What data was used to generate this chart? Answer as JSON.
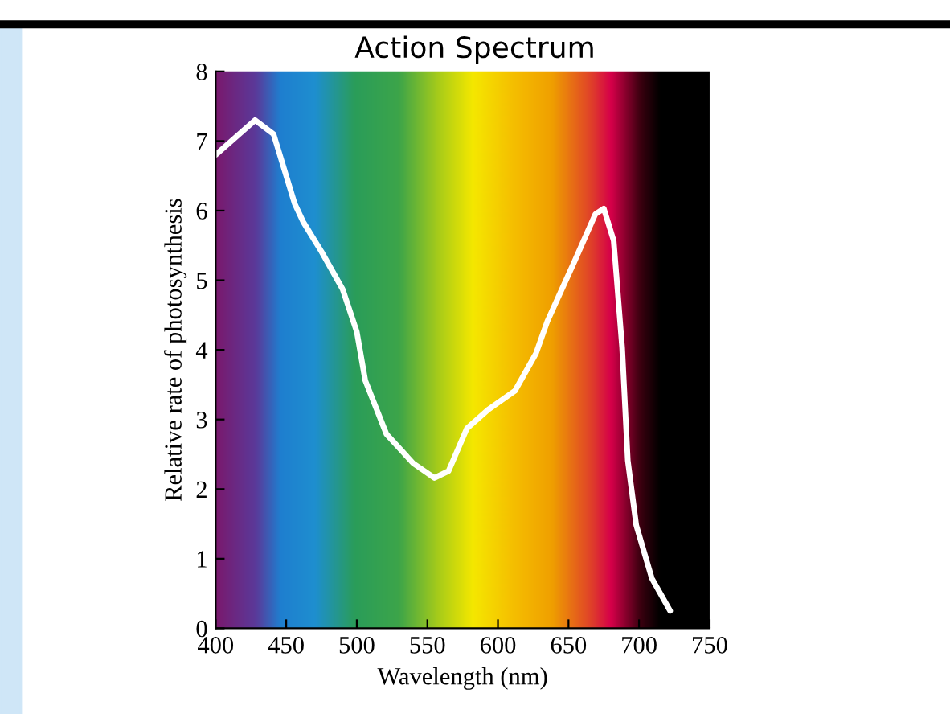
{
  "chart_data": {
    "type": "line",
    "title": "Action Spectrum",
    "xlabel": "Wavelength (nm)",
    "ylabel": "Relative rate of photosynthesis",
    "xlim": [
      400,
      750
    ],
    "ylim": [
      0,
      8
    ],
    "xticks": [
      400,
      450,
      500,
      550,
      600,
      650,
      700,
      750
    ],
    "yticks": [
      0,
      1,
      2,
      3,
      4,
      5,
      6,
      7,
      8
    ],
    "grid": false,
    "legend": false,
    "marker": "none",
    "line_style": "solid",
    "series": [
      {
        "color": "#ffffff",
        "x": [
          400,
          428,
          441,
          456,
          462,
          475,
          490,
          500,
          506,
          521,
          540,
          555,
          565,
          578,
          593,
          612,
          627,
          635,
          654,
          669,
          675,
          682,
          688,
          692,
          698,
          709,
          722
        ],
        "values": [
          6.8,
          7.3,
          7.1,
          6.1,
          5.84,
          5.41,
          4.87,
          4.26,
          3.56,
          2.79,
          2.37,
          2.16,
          2.26,
          2.87,
          3.14,
          3.41,
          3.95,
          4.41,
          5.26,
          5.95,
          6.03,
          5.57,
          4.03,
          2.41,
          1.48,
          0.72,
          0.25
        ]
      }
    ]
  }
}
